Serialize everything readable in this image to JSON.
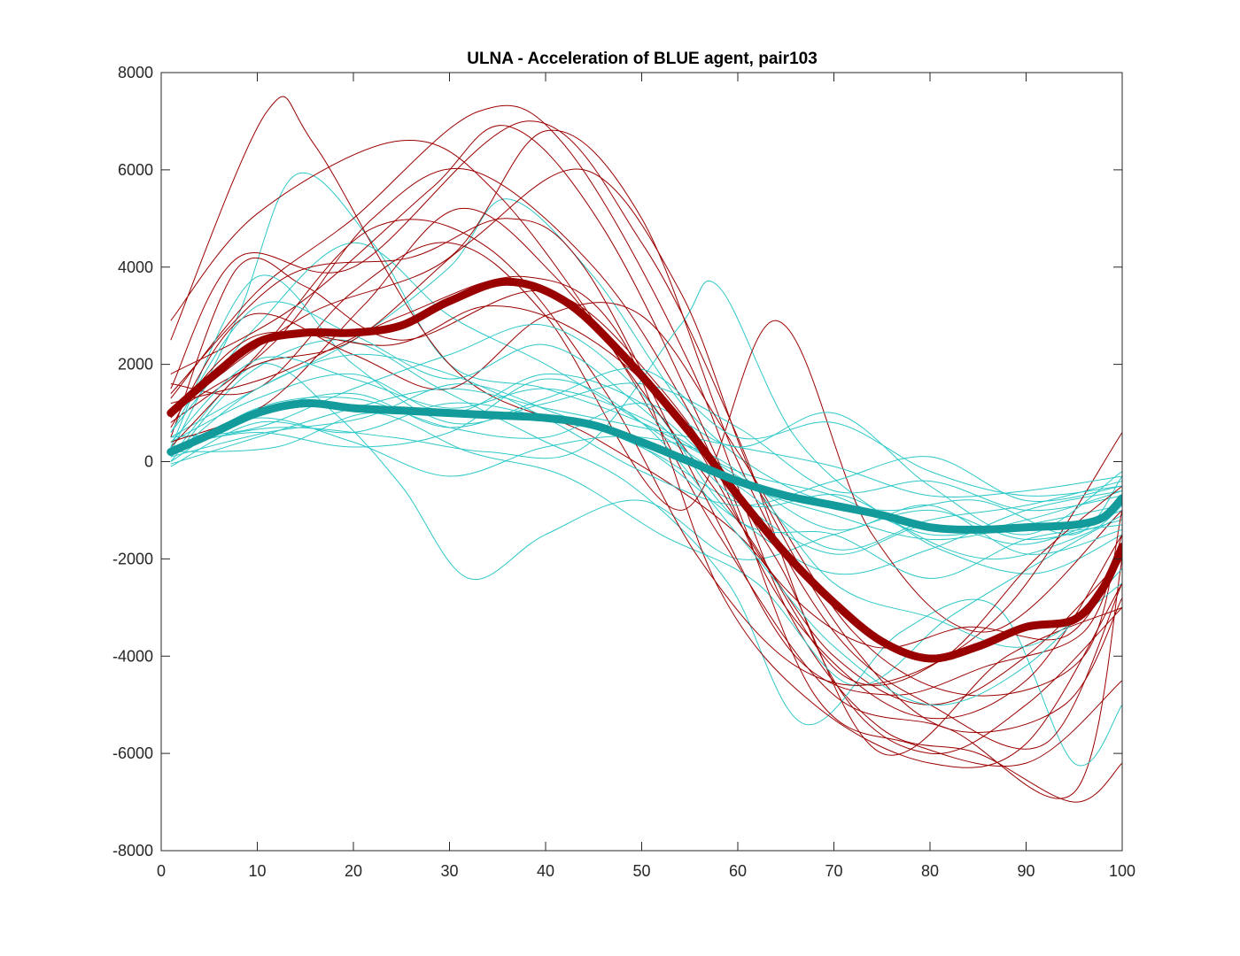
{
  "chart_data": {
    "type": "line",
    "title": "ULNA - Acceleration of BLUE agent, pair103",
    "xlabel": "",
    "ylabel": "",
    "xlim": [
      0,
      100
    ],
    "ylim": [
      -8000,
      8000
    ],
    "xticks": [
      0,
      10,
      20,
      30,
      40,
      50,
      60,
      70,
      80,
      90,
      100
    ],
    "xtick_labels": [
      "0",
      "10",
      "20",
      "30",
      "40",
      "50",
      "60",
      "70",
      "80",
      "90",
      "100"
    ],
    "yticks": [
      -8000,
      -6000,
      -4000,
      -2000,
      0,
      2000,
      4000,
      6000,
      8000
    ],
    "ytick_labels": [
      "-8000",
      "-6000",
      "-4000",
      "-2000",
      "0",
      "2000",
      "4000",
      "6000",
      "8000"
    ],
    "grid": false,
    "colors": {
      "red_trial": "#9b0000",
      "cyan_trial": "#2ec8c8",
      "red_mean": "#990000",
      "cyan_mean": "#139a9a",
      "axis": "#262626"
    },
    "series": [
      {
        "name": "red trial 1",
        "group": "red",
        "x": [
          1,
          11,
          16,
          30,
          45,
          60,
          70,
          80,
          90,
          100
        ],
        "y": [
          2500,
          7200,
          6500,
          2000,
          500,
          -1500,
          -4000,
          -5000,
          -4000,
          -2000
        ]
      },
      {
        "name": "red trial 2",
        "group": "red",
        "x": [
          1,
          10,
          20,
          33,
          42,
          55,
          65,
          75,
          85,
          95,
          100
        ],
        "y": [
          1300,
          3500,
          5000,
          7200,
          6500,
          2000,
          -3000,
          -5500,
          -6000,
          -7000,
          -6200
        ]
      },
      {
        "name": "red trial 3",
        "group": "red",
        "x": [
          1,
          8,
          20,
          38,
          50,
          60,
          70,
          80,
          90,
          100
        ],
        "y": [
          1500,
          4200,
          4000,
          7000,
          4500,
          500,
          -4500,
          -6000,
          -5000,
          -3000
        ]
      },
      {
        "name": "red trial 4",
        "group": "red",
        "x": [
          1,
          10,
          25,
          35,
          48,
          58,
          70,
          82,
          95,
          100
        ],
        "y": [
          2900,
          5100,
          6600,
          5500,
          2000,
          -1500,
          -4800,
          -5500,
          -6800,
          -2000
        ]
      },
      {
        "name": "red trial 5",
        "group": "red",
        "x": [
          1,
          12,
          22,
          32,
          45,
          55,
          65,
          78,
          90,
          100
        ],
        "y": [
          800,
          2500,
          5000,
          6000,
          4000,
          1000,
          -3000,
          -5200,
          -4500,
          -1500
        ]
      },
      {
        "name": "red trial 6",
        "group": "red",
        "x": [
          1,
          8,
          15,
          25,
          40,
          52,
          64,
          75,
          88,
          100
        ],
        "y": [
          500,
          4000,
          3600,
          2500,
          3500,
          1500,
          -2000,
          -6000,
          -4000,
          -3000
        ]
      },
      {
        "name": "red trial 7",
        "group": "red",
        "x": [
          1,
          15,
          30,
          40,
          50,
          60,
          70,
          80,
          92,
          100
        ],
        "y": [
          1000,
          3000,
          4200,
          6800,
          5000,
          0,
          -3500,
          -5000,
          -5800,
          -2500
        ]
      },
      {
        "name": "red trial 8",
        "group": "red",
        "x": [
          1,
          10,
          20,
          30,
          40,
          54,
          64,
          74,
          86,
          100
        ],
        "y": [
          1600,
          1500,
          3500,
          4500,
          3000,
          -1000,
          2900,
          -1500,
          -3500,
          -1000
        ]
      },
      {
        "name": "red trial 9",
        "group": "red",
        "x": [
          1,
          12,
          25,
          38,
          48,
          58,
          68,
          80,
          90,
          100
        ],
        "y": [
          1200,
          1800,
          3000,
          3800,
          2500,
          -2600,
          -5000,
          -6200,
          -5800,
          -2500
        ]
      },
      {
        "name": "red trial 10",
        "group": "red",
        "x": [
          1,
          10,
          22,
          34,
          46,
          56,
          66,
          76,
          88,
          100
        ],
        "y": [
          300,
          2200,
          4800,
          4400,
          1500,
          -2000,
          -4200,
          -4500,
          -3000,
          600
        ]
      },
      {
        "name": "red trial 11",
        "group": "red",
        "x": [
          1,
          9,
          20,
          30,
          40,
          50,
          60,
          72,
          84,
          96,
          100
        ],
        "y": [
          700,
          3000,
          2200,
          1500,
          3000,
          3000,
          200,
          -3500,
          -4800,
          -4000,
          -1000
        ]
      },
      {
        "name": "red trial 12",
        "group": "red",
        "x": [
          1,
          14,
          28,
          36,
          46,
          58,
          68,
          78,
          90,
          100
        ],
        "y": [
          1800,
          3200,
          5600,
          6900,
          4800,
          0,
          -4800,
          -5800,
          -6200,
          -4500
        ]
      },
      {
        "name": "red trial 13",
        "group": "red",
        "x": [
          1,
          11,
          21,
          31,
          41,
          51,
          61,
          71,
          81,
          91,
          100
        ],
        "y": [
          400,
          1200,
          3200,
          5200,
          3800,
          1200,
          -1500,
          -4400,
          -4100,
          -2000,
          -500
        ]
      },
      {
        "name": "red trial 14",
        "group": "red",
        "x": [
          1,
          10,
          20,
          32,
          44,
          54,
          62,
          72,
          82,
          94,
          100
        ],
        "y": [
          1000,
          2000,
          2500,
          4500,
          6000,
          3500,
          -500,
          -3800,
          -5500,
          -5000,
          -2800
        ]
      },
      {
        "name": "red trial 15",
        "group": "red",
        "x": [
          1,
          13,
          26,
          36,
          44,
          56,
          66,
          76,
          86,
          96,
          100
        ],
        "y": [
          1400,
          3800,
          4200,
          5000,
          4000,
          -500,
          -4000,
          -4800,
          -4200,
          -3500,
          -1500
        ]
      },
      {
        "name": "red trial 16",
        "group": "red",
        "x": [
          1,
          10,
          24,
          34,
          44,
          54,
          64,
          74,
          84,
          94,
          100
        ],
        "y": [
          900,
          2600,
          2400,
          3200,
          2600,
          800,
          -2400,
          -3800,
          -3400,
          -3600,
          -2000
        ]
      },
      {
        "name": "cyan trial 1",
        "group": "cyan",
        "x": [
          1,
          8,
          14,
          22,
          30,
          40,
          50,
          60,
          70,
          80,
          90,
          100
        ],
        "y": [
          200,
          3000,
          5900,
          4500,
          2000,
          1500,
          800,
          -200,
          -700,
          -1500,
          -1200,
          -600
        ]
      },
      {
        "name": "cyan trial 2",
        "group": "cyan",
        "x": [
          1,
          10,
          18,
          25,
          32,
          40,
          50,
          60,
          70,
          80,
          90,
          100
        ],
        "y": [
          100,
          2000,
          1000,
          -500,
          -2400,
          -1500,
          -800,
          -2000,
          -1500,
          -1000,
          -1600,
          -1200
        ]
      },
      {
        "name": "cyan trial 3",
        "group": "cyan",
        "x": [
          1,
          10,
          20,
          30,
          36,
          45,
          55,
          65,
          75,
          85,
          95,
          100
        ],
        "y": [
          500,
          1500,
          2500,
          4000,
          5400,
          3800,
          1000,
          -500,
          -1000,
          -800,
          -1500,
          -300
        ]
      },
      {
        "name": "cyan trial 4",
        "group": "cyan",
        "x": [
          1,
          12,
          24,
          34,
          44,
          54,
          58,
          66,
          76,
          86,
          96,
          100
        ],
        "y": [
          300,
          700,
          500,
          200,
          300,
          2800,
          3600,
          500,
          -1200,
          -2000,
          -1500,
          -900
        ]
      },
      {
        "name": "cyan trial 5",
        "group": "cyan",
        "x": [
          1,
          9,
          19,
          29,
          39,
          49,
          59,
          67,
          77,
          87,
          95,
          100
        ],
        "y": [
          0,
          1800,
          2500,
          1500,
          500,
          -500,
          -2500,
          -5400,
          -3500,
          -3000,
          -6200,
          -5000
        ]
      },
      {
        "name": "cyan trial 6",
        "group": "cyan",
        "x": [
          1,
          10,
          20,
          30,
          40,
          50,
          60,
          70,
          80,
          90,
          100
        ],
        "y": [
          -100,
          800,
          600,
          1200,
          900,
          300,
          -1200,
          -2300,
          -1800,
          -1000,
          -600
        ]
      },
      {
        "name": "cyan trial 7",
        "group": "cyan",
        "x": [
          1,
          10,
          20,
          30,
          40,
          50,
          60,
          70,
          80,
          90,
          100
        ],
        "y": [
          400,
          1300,
          1800,
          1000,
          1800,
          1200,
          -400,
          -1100,
          -1600,
          -1300,
          -900
        ]
      },
      {
        "name": "cyan trial 8",
        "group": "cyan",
        "x": [
          1,
          11,
          21,
          31,
          41,
          51,
          61,
          71,
          81,
          91,
          100
        ],
        "y": [
          100,
          600,
          900,
          1600,
          1000,
          200,
          -900,
          -700,
          -1800,
          -2300,
          -1500
        ]
      },
      {
        "name": "cyan trial 9",
        "group": "cyan",
        "x": [
          1,
          10,
          20,
          30,
          40,
          50,
          60,
          70,
          80,
          90,
          100
        ],
        "y": [
          600,
          2800,
          4500,
          3000,
          2000,
          800,
          -500,
          -1800,
          -1200,
          -900,
          -400
        ]
      },
      {
        "name": "cyan trial 10",
        "group": "cyan",
        "x": [
          1,
          12,
          22,
          32,
          42,
          52,
          62,
          72,
          82,
          92,
          100
        ],
        "y": [
          200,
          300,
          1000,
          200,
          -300,
          -1500,
          -2500,
          -4600,
          -3200,
          -2000,
          -1100
        ]
      },
      {
        "name": "cyan trial 11",
        "group": "cyan",
        "x": [
          1,
          10,
          20,
          30,
          40,
          50,
          60,
          70,
          80,
          90,
          100
        ],
        "y": [
          300,
          3800,
          2000,
          800,
          1200,
          1600,
          700,
          -600,
          -400,
          -1000,
          -700
        ]
      },
      {
        "name": "cyan trial 12",
        "group": "cyan",
        "x": [
          1,
          10,
          20,
          30,
          40,
          50,
          60,
          70,
          80,
          90,
          100
        ],
        "y": [
          0,
          1100,
          1300,
          700,
          500,
          1200,
          300,
          1000,
          -500,
          -1500,
          -200
        ]
      },
      {
        "name": "cyan trial 13",
        "group": "cyan",
        "x": [
          1,
          10,
          20,
          30,
          40,
          50,
          60,
          70,
          80,
          90,
          100
        ],
        "y": [
          500,
          700,
          1500,
          2200,
          2800,
          1400,
          -1200,
          -1500,
          -2400,
          -1600,
          -1300
        ]
      },
      {
        "name": "cyan trial 14",
        "group": "cyan",
        "x": [
          1,
          10,
          20,
          30,
          40,
          50,
          60,
          70,
          80,
          90,
          100
        ],
        "y": [
          200,
          900,
          400,
          -300,
          300,
          500,
          -200,
          -2500,
          -3200,
          -3800,
          -2500
        ]
      },
      {
        "name": "cyan trial 15",
        "group": "cyan",
        "x": [
          1,
          10,
          20,
          30,
          40,
          50,
          60,
          70,
          80,
          90,
          100
        ],
        "y": [
          100,
          1500,
          2200,
          1800,
          900,
          -200,
          -900,
          -400,
          100,
          -800,
          -500
        ]
      },
      {
        "name": "cyan trial 16",
        "group": "cyan",
        "x": [
          1,
          10,
          20,
          30,
          40,
          50,
          60,
          70,
          80,
          90,
          100
        ],
        "y": [
          400,
          2100,
          1700,
          1100,
          1500,
          900,
          -300,
          -1400,
          -900,
          -1900,
          -1400
        ]
      },
      {
        "name": "cyan trial 17",
        "group": "cyan",
        "x": [
          1,
          10,
          20,
          30,
          40,
          50,
          60,
          70,
          80,
          90,
          100
        ],
        "y": [
          300,
          600,
          300,
          600,
          1700,
          800,
          -1500,
          -3800,
          -5000,
          -4200,
          -2200
        ]
      },
      {
        "name": "cyan trial 18",
        "group": "cyan",
        "x": [
          1,
          10,
          20,
          30,
          40,
          50,
          60,
          70,
          80,
          90,
          100
        ],
        "y": [
          -50,
          500,
          1100,
          1500,
          1100,
          700,
          300,
          -100,
          -700,
          -600,
          -300
        ]
      },
      {
        "name": "cyan trial 19",
        "group": "cyan",
        "x": [
          1,
          10,
          20,
          30,
          40,
          50,
          60,
          70,
          80,
          90,
          100
        ],
        "y": [
          600,
          3200,
          2600,
          1700,
          2400,
          1100,
          -800,
          -1900,
          -1300,
          -1700,
          -1000
        ]
      },
      {
        "name": "cyan trial 20",
        "group": "cyan",
        "x": [
          1,
          10,
          20,
          30,
          40,
          50,
          60,
          70,
          80,
          90,
          100
        ],
        "y": [
          150,
          1000,
          1400,
          700,
          1300,
          1900,
          500,
          800,
          -200,
          -700,
          -500
        ]
      }
    ],
    "mean_series": [
      {
        "name": "red mean",
        "group": "red",
        "x": [
          1,
          5,
          10,
          15,
          20,
          25,
          30,
          36,
          42,
          48,
          55,
          60,
          65,
          70,
          75,
          80,
          85,
          90,
          95,
          98,
          100
        ],
        "y": [
          1000,
          1700,
          2450,
          2650,
          2650,
          2800,
          3300,
          3700,
          3300,
          2200,
          600,
          -700,
          -1900,
          -2900,
          -3700,
          -4050,
          -3800,
          -3400,
          -3250,
          -2600,
          -1750
        ]
      },
      {
        "name": "cyan mean",
        "group": "cyan",
        "x": [
          1,
          5,
          10,
          15,
          20,
          25,
          30,
          35,
          40,
          45,
          50,
          55,
          60,
          65,
          70,
          75,
          80,
          85,
          90,
          95,
          98,
          100
        ],
        "y": [
          200,
          550,
          1000,
          1200,
          1100,
          1050,
          1000,
          950,
          900,
          750,
          400,
          0,
          -400,
          -700,
          -900,
          -1100,
          -1350,
          -1400,
          -1350,
          -1300,
          -1150,
          -750
        ]
      }
    ]
  }
}
